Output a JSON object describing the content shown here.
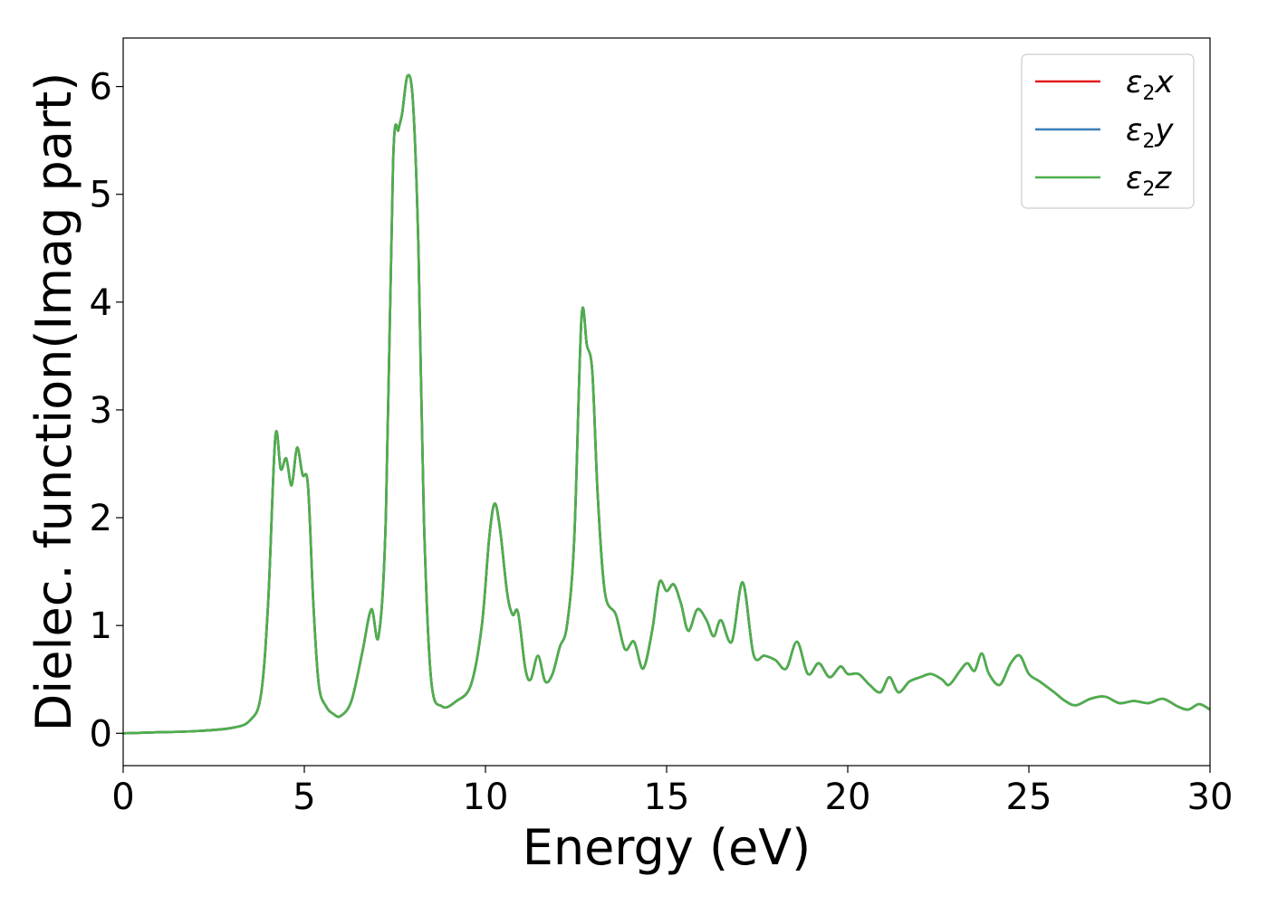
{
  "chart_data": {
    "type": "line",
    "title": "",
    "xlabel": "Energy (eV)",
    "ylabel": "Dielec. function(Imag part)",
    "xlim": [
      0,
      30
    ],
    "ylim": [
      -0.3,
      6.45
    ],
    "xticks": [
      0,
      5,
      10,
      15,
      20,
      25,
      30
    ],
    "yticks": [
      0,
      1,
      2,
      3,
      4,
      5,
      6
    ],
    "grid": false,
    "legend_position": "top-right",
    "x": [
      0,
      1,
      2,
      3,
      3.5,
      3.8,
      4.0,
      4.2,
      4.35,
      4.5,
      4.65,
      4.8,
      4.95,
      5.1,
      5.25,
      5.4,
      5.6,
      5.8,
      6.0,
      6.3,
      6.6,
      6.85,
      7.05,
      7.25,
      7.45,
      7.6,
      7.7,
      7.85,
      8.0,
      8.15,
      8.3,
      8.5,
      8.8,
      9.2,
      9.6,
      9.9,
      10.1,
      10.25,
      10.4,
      10.6,
      10.75,
      10.9,
      11.1,
      11.25,
      11.45,
      11.65,
      11.85,
      12.05,
      12.25,
      12.45,
      12.65,
      12.8,
      12.95,
      13.1,
      13.3,
      13.6,
      13.85,
      14.1,
      14.35,
      14.6,
      14.8,
      15.0,
      15.2,
      15.4,
      15.6,
      15.85,
      16.1,
      16.3,
      16.5,
      16.8,
      17.1,
      17.4,
      17.7,
      18.0,
      18.3,
      18.6,
      18.9,
      19.2,
      19.5,
      19.8,
      20.0,
      20.3,
      20.6,
      20.9,
      21.15,
      21.4,
      21.7,
      22.0,
      22.3,
      22.6,
      22.8,
      23.1,
      23.3,
      23.5,
      23.7,
      23.9,
      24.2,
      24.5,
      24.75,
      25.0,
      25.3,
      25.7,
      26.0,
      26.3,
      26.7,
      27.1,
      27.5,
      27.9,
      28.3,
      28.7,
      29.1,
      29.4,
      29.7,
      30.0
    ],
    "series": [
      {
        "name": "ε2x",
        "color": "#e41a1c",
        "values": [
          0.0,
          0.01,
          0.02,
          0.05,
          0.12,
          0.35,
          1.2,
          2.75,
          2.45,
          2.55,
          2.3,
          2.65,
          2.4,
          2.3,
          1.2,
          0.45,
          0.25,
          0.18,
          0.16,
          0.3,
          0.75,
          1.15,
          0.9,
          2.0,
          5.3,
          5.6,
          5.75,
          6.1,
          5.85,
          4.5,
          2.0,
          0.5,
          0.25,
          0.3,
          0.45,
          1.0,
          1.8,
          2.13,
          1.9,
          1.3,
          1.1,
          1.12,
          0.6,
          0.5,
          0.72,
          0.48,
          0.55,
          0.8,
          1.0,
          1.8,
          3.85,
          3.6,
          3.35,
          2.2,
          1.3,
          1.1,
          0.78,
          0.85,
          0.6,
          0.95,
          1.4,
          1.32,
          1.38,
          1.2,
          0.95,
          1.15,
          1.05,
          0.9,
          1.05,
          0.85,
          1.4,
          0.73,
          0.72,
          0.68,
          0.6,
          0.85,
          0.55,
          0.65,
          0.52,
          0.62,
          0.55,
          0.55,
          0.45,
          0.38,
          0.52,
          0.38,
          0.48,
          0.52,
          0.55,
          0.5,
          0.45,
          0.58,
          0.65,
          0.58,
          0.74,
          0.55,
          0.45,
          0.65,
          0.72,
          0.55,
          0.48,
          0.38,
          0.3,
          0.26,
          0.32,
          0.34,
          0.28,
          0.3,
          0.28,
          0.32,
          0.25,
          0.22,
          0.27,
          0.22
        ]
      },
      {
        "name": "ε2y",
        "color": "#377eb8",
        "values": [
          0.0,
          0.01,
          0.02,
          0.05,
          0.12,
          0.35,
          1.2,
          2.75,
          2.45,
          2.55,
          2.3,
          2.65,
          2.4,
          2.3,
          1.2,
          0.45,
          0.25,
          0.18,
          0.16,
          0.3,
          0.75,
          1.15,
          0.9,
          2.0,
          5.3,
          5.6,
          5.75,
          6.1,
          5.85,
          4.5,
          2.0,
          0.5,
          0.25,
          0.3,
          0.45,
          1.0,
          1.8,
          2.13,
          1.9,
          1.3,
          1.1,
          1.12,
          0.6,
          0.5,
          0.72,
          0.48,
          0.55,
          0.8,
          1.0,
          1.8,
          3.85,
          3.6,
          3.35,
          2.2,
          1.3,
          1.1,
          0.78,
          0.85,
          0.6,
          0.95,
          1.4,
          1.32,
          1.38,
          1.2,
          0.95,
          1.15,
          1.05,
          0.9,
          1.05,
          0.85,
          1.4,
          0.73,
          0.72,
          0.68,
          0.6,
          0.85,
          0.55,
          0.65,
          0.52,
          0.62,
          0.55,
          0.55,
          0.45,
          0.38,
          0.52,
          0.38,
          0.48,
          0.52,
          0.55,
          0.5,
          0.45,
          0.58,
          0.65,
          0.58,
          0.74,
          0.55,
          0.45,
          0.65,
          0.72,
          0.55,
          0.48,
          0.38,
          0.3,
          0.26,
          0.32,
          0.34,
          0.28,
          0.3,
          0.28,
          0.32,
          0.25,
          0.22,
          0.27,
          0.22
        ]
      },
      {
        "name": "ε2z",
        "color": "#4daf4a",
        "values": [
          0.0,
          0.01,
          0.02,
          0.05,
          0.12,
          0.35,
          1.2,
          2.75,
          2.45,
          2.55,
          2.3,
          2.65,
          2.4,
          2.3,
          1.2,
          0.45,
          0.25,
          0.18,
          0.16,
          0.3,
          0.75,
          1.15,
          0.9,
          2.0,
          5.3,
          5.6,
          5.75,
          6.1,
          5.85,
          4.5,
          2.0,
          0.5,
          0.25,
          0.3,
          0.45,
          1.0,
          1.8,
          2.13,
          1.9,
          1.3,
          1.1,
          1.12,
          0.6,
          0.5,
          0.72,
          0.48,
          0.55,
          0.8,
          1.0,
          1.8,
          3.85,
          3.6,
          3.35,
          2.2,
          1.3,
          1.1,
          0.78,
          0.85,
          0.6,
          0.95,
          1.4,
          1.32,
          1.38,
          1.2,
          0.95,
          1.15,
          1.05,
          0.9,
          1.05,
          0.85,
          1.4,
          0.73,
          0.72,
          0.68,
          0.6,
          0.85,
          0.55,
          0.65,
          0.52,
          0.62,
          0.55,
          0.55,
          0.45,
          0.38,
          0.52,
          0.38,
          0.48,
          0.52,
          0.55,
          0.5,
          0.45,
          0.58,
          0.65,
          0.58,
          0.74,
          0.55,
          0.45,
          0.65,
          0.72,
          0.55,
          0.48,
          0.38,
          0.3,
          0.26,
          0.32,
          0.34,
          0.28,
          0.3,
          0.28,
          0.32,
          0.25,
          0.22,
          0.27,
          0.22
        ]
      }
    ],
    "legend": [
      {
        "symbol": "ε",
        "sub": "2",
        "var": "x"
      },
      {
        "symbol": "ε",
        "sub": "2",
        "var": "y"
      },
      {
        "symbol": "ε",
        "sub": "2",
        "var": "z"
      }
    ]
  }
}
